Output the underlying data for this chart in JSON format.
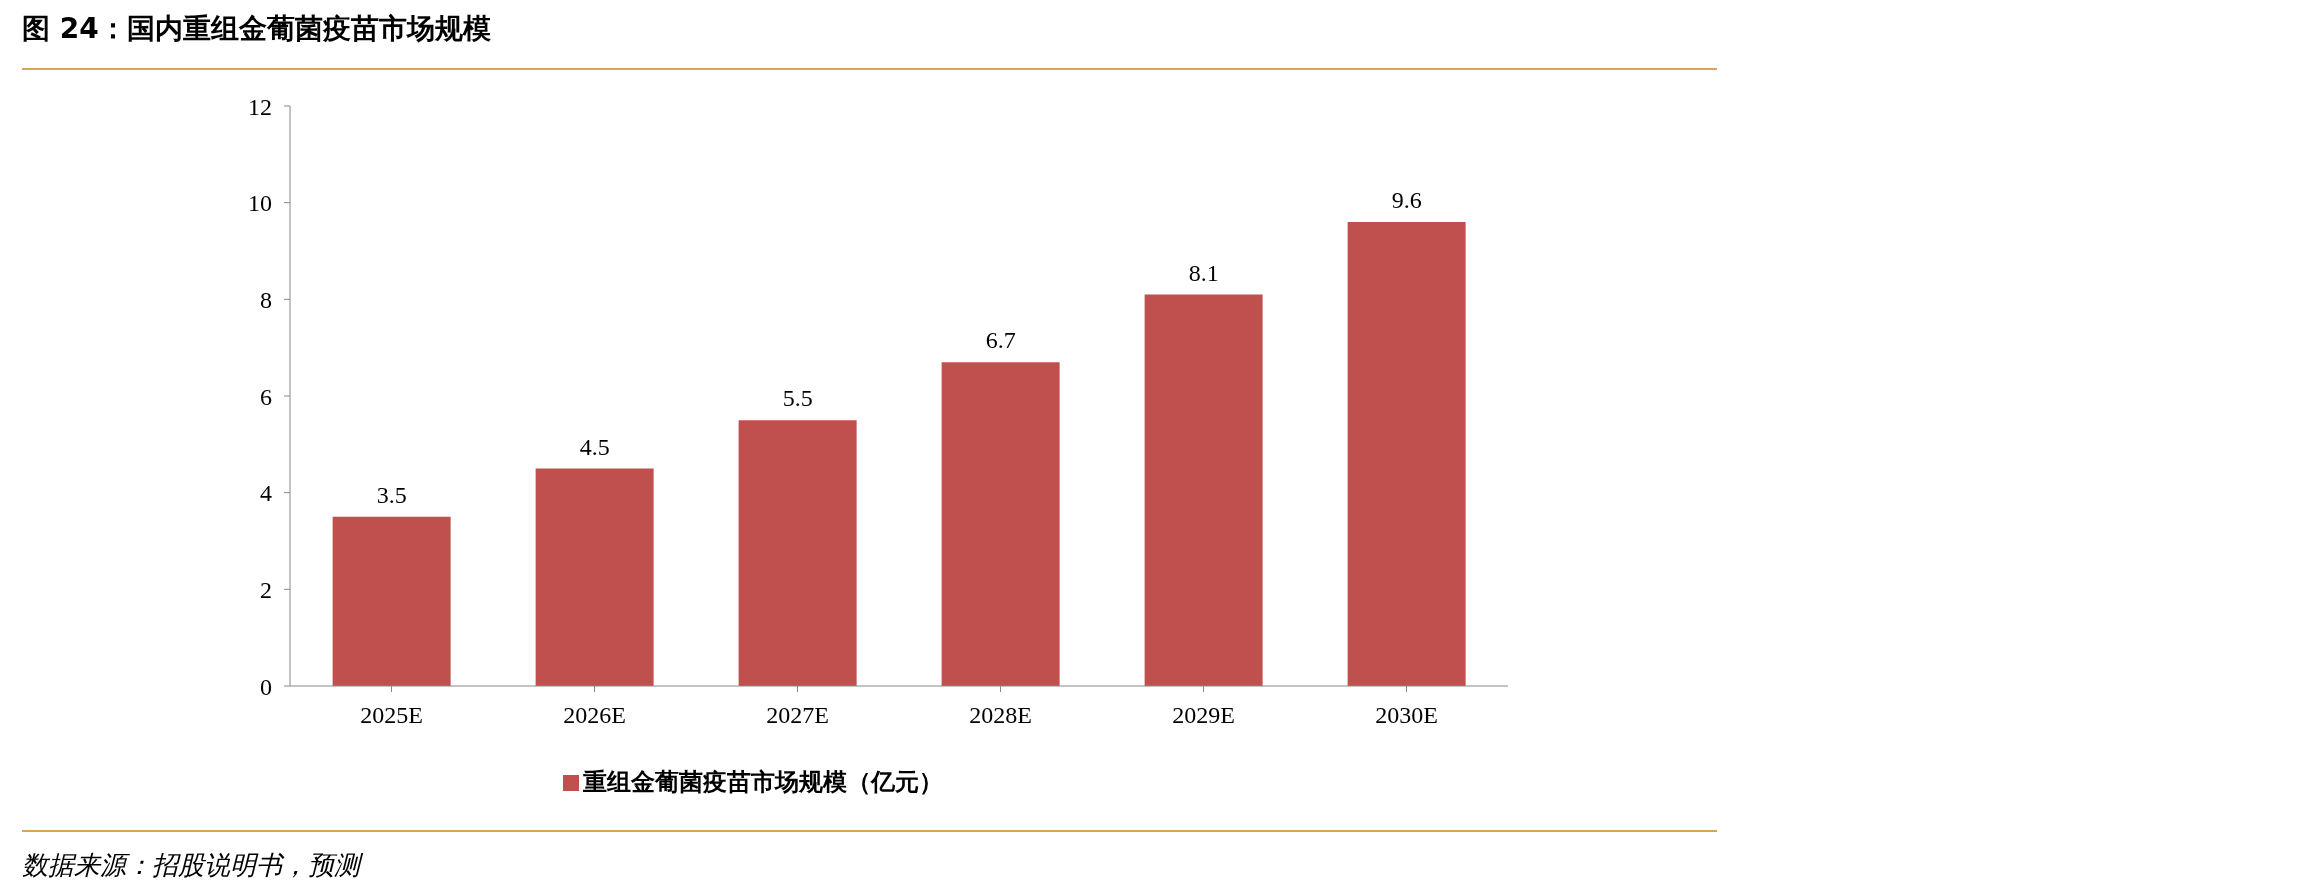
{
  "chart_data": {
    "type": "bar",
    "title": "图 24：国内重组金葡菌疫苗市场规模",
    "categories": [
      "2025E",
      "2026E",
      "2027E",
      "2028E",
      "2029E",
      "2030E"
    ],
    "series": [
      {
        "name": "重组金葡菌疫苗市场规模（亿元）",
        "color": "#c0504d",
        "values": [
          3.5,
          4.5,
          5.5,
          6.7,
          8.1,
          9.6
        ]
      }
    ],
    "ylim": [
      0,
      12
    ],
    "yticks": [
      0,
      2,
      4,
      6,
      8,
      10,
      12
    ],
    "data_labels": true,
    "legend": "bottom",
    "grid": false,
    "annotations": [
      "数据来源：招股说明书，预测"
    ]
  }
}
